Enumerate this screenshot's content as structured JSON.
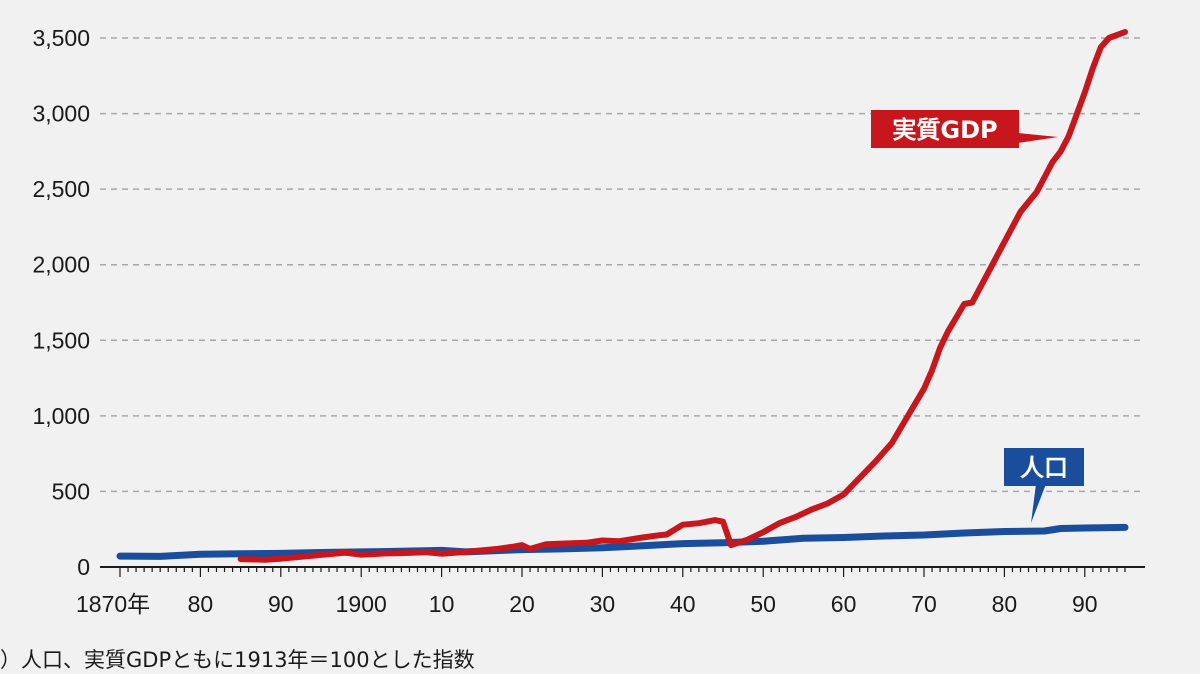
{
  "footnote": "）人口、実質GDPともに1913年＝100とした指数",
  "chart_data": {
    "type": "line",
    "title": "",
    "xlabel": "",
    "ylabel": "",
    "xlim": [
      1870,
      1995
    ],
    "ylim": [
      0,
      3500
    ],
    "grid": true,
    "y_ticks": [
      0,
      500,
      1000,
      1500,
      2000,
      2500,
      3000,
      3500
    ],
    "y_tick_labels": [
      "0",
      "500",
      "1,000",
      "1,500",
      "2,000",
      "2,500",
      "3,000",
      "3,500"
    ],
    "x_ticks": [
      1870,
      1880,
      1890,
      1900,
      1910,
      1920,
      1930,
      1940,
      1950,
      1960,
      1970,
      1980,
      1990
    ],
    "x_tick_labels": [
      "1870年",
      "80",
      "90",
      "1900",
      "10",
      "20",
      "30",
      "40",
      "50",
      "60",
      "70",
      "80",
      "90"
    ],
    "series": [
      {
        "name": "実質GDP",
        "color": "#c8161d",
        "x": [
          1885,
          1888,
          1890,
          1893,
          1895,
          1898,
          1900,
          1903,
          1905,
          1908,
          1910,
          1913,
          1915,
          1917,
          1919,
          1920,
          1921,
          1923,
          1925,
          1928,
          1930,
          1932,
          1935,
          1937,
          1938,
          1940,
          1942,
          1943,
          1944,
          1945,
          1946,
          1948,
          1950,
          1952,
          1954,
          1956,
          1958,
          1960,
          1962,
          1964,
          1966,
          1968,
          1970,
          1971,
          1972,
          1973,
          1974,
          1975,
          1976,
          1978,
          1980,
          1982,
          1984,
          1985,
          1986,
          1987,
          1988,
          1990,
          1991,
          1992,
          1993,
          1994,
          1995
        ],
        "values": [
          52,
          48,
          55,
          70,
          80,
          95,
          82,
          90,
          92,
          98,
          88,
          100,
          110,
          120,
          135,
          145,
          120,
          150,
          155,
          160,
          175,
          170,
          195,
          210,
          215,
          280,
          290,
          300,
          310,
          300,
          145,
          180,
          230,
          290,
          330,
          380,
          420,
          480,
          590,
          700,
          820,
          1000,
          1180,
          1300,
          1450,
          1560,
          1650,
          1740,
          1750,
          1950,
          2150,
          2350,
          2480,
          2580,
          2680,
          2750,
          2850,
          3140,
          3300,
          3440,
          3500,
          3520,
          3540
        ]
      },
      {
        "name": "人口",
        "color": "#1a4d9c",
        "x": [
          1870,
          1875,
          1880,
          1885,
          1890,
          1895,
          1900,
          1905,
          1910,
          1913,
          1920,
          1925,
          1930,
          1935,
          1940,
          1945,
          1950,
          1955,
          1960,
          1965,
          1970,
          1975,
          1980,
          1985,
          1987,
          1990,
          1995
        ],
        "values": [
          72,
          70,
          85,
          88,
          90,
          96,
          100,
          104,
          110,
          100,
          115,
          120,
          128,
          140,
          155,
          160,
          170,
          190,
          195,
          205,
          212,
          225,
          235,
          238,
          255,
          258,
          262
        ]
      }
    ],
    "annotations": [
      {
        "text": "実質GDP",
        "series": 0
      },
      {
        "text": "人口",
        "series": 1
      }
    ]
  }
}
